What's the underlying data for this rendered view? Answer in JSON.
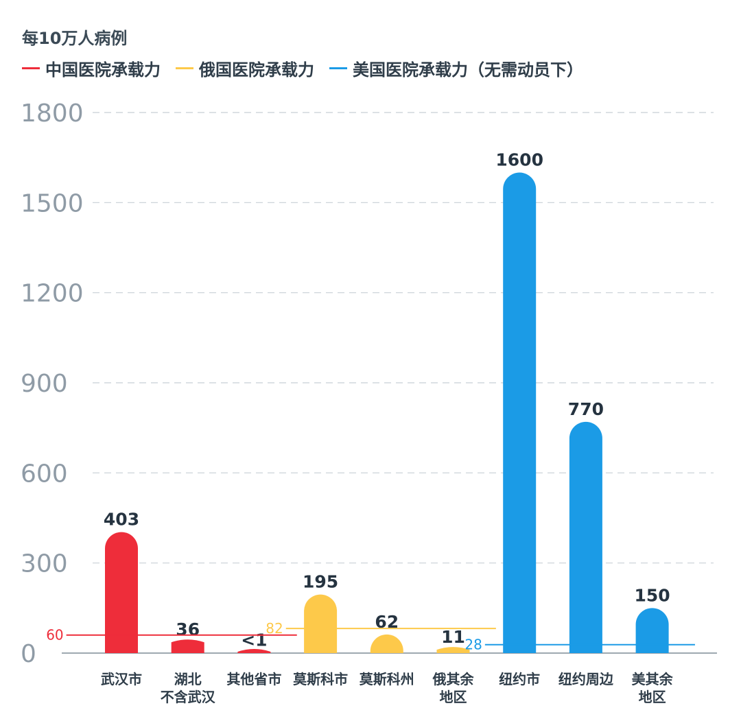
{
  "chart_data": {
    "type": "bar",
    "unit_label": "每10万人病例",
    "categories": [
      "武汉市",
      "湖北\n不含武汉",
      "其他省市",
      "莫斯科市",
      "莫斯科州",
      "俄其余\n地区",
      "纽约市",
      "纽约周边",
      "美其余\n地区"
    ],
    "values": [
      403,
      36,
      1,
      195,
      62,
      11,
      1600,
      770,
      150
    ],
    "value_labels": [
      "403",
      "36",
      "<1",
      "195",
      "62",
      "11",
      "1600",
      "770",
      "150"
    ],
    "bar_colors": [
      "#ee2d3a",
      "#ee2d3a",
      "#ee2d3a",
      "#fdc94a",
      "#fdc94a",
      "#fdc94a",
      "#1b9be6",
      "#1b9be6",
      "#1b9be6"
    ],
    "series": [
      {
        "name": "中国医院承载力",
        "color": "#ee2d3a",
        "value": 60,
        "label": "60",
        "from": 0,
        "to": 2
      },
      {
        "name": "俄国医院承载力",
        "color": "#fdc94a",
        "value": 82,
        "label": "82",
        "from": 3,
        "to": 5
      },
      {
        "name": "美国医院承载力（无需动员下）",
        "color": "#1b9be6",
        "value": 28,
        "label": "28",
        "from": 6,
        "to": 8
      }
    ],
    "ylim": [
      0,
      1800
    ],
    "yticks": [
      0,
      300,
      600,
      900,
      1200,
      1500,
      1800
    ],
    "grid": true,
    "legend_position": "top-left"
  }
}
